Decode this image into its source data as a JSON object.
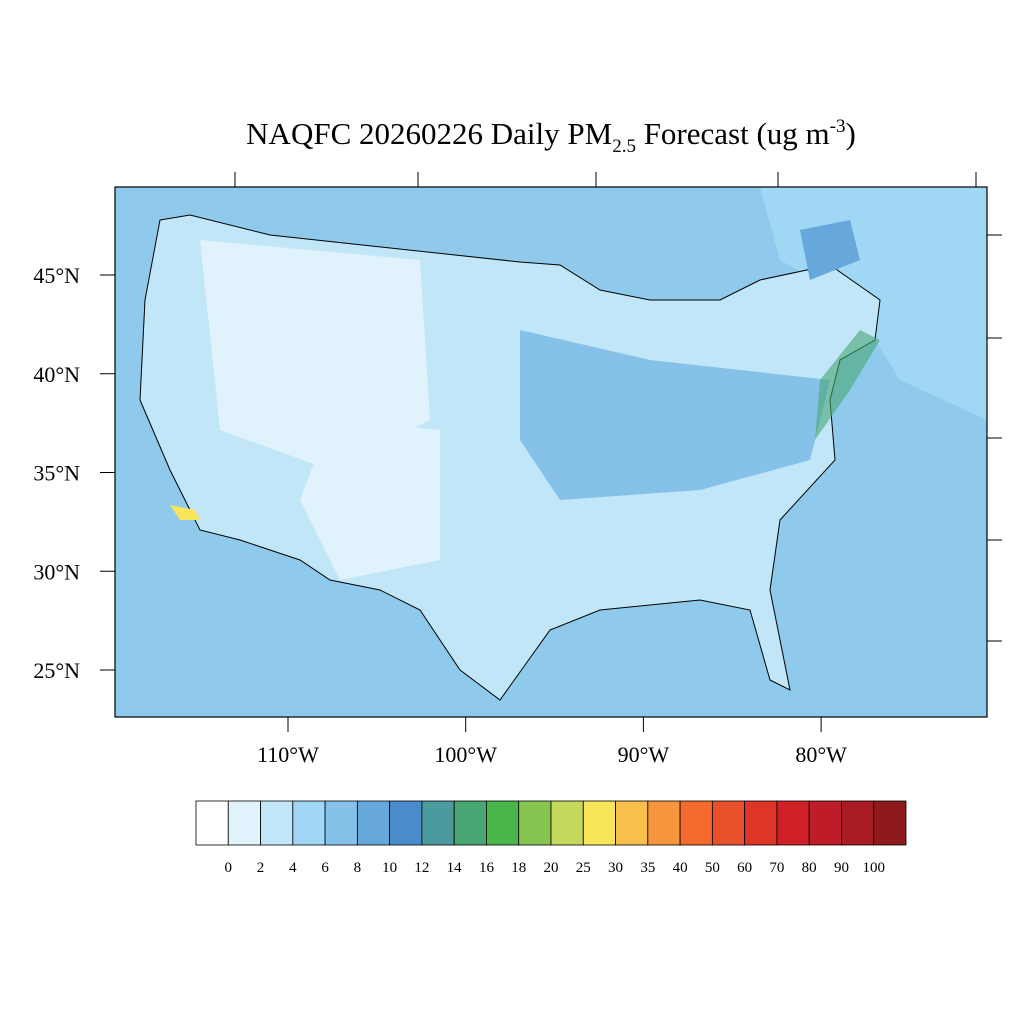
{
  "title": {
    "main": "NAQFC 20260226 Daily PM",
    "subscript": "2.5",
    "middle": " Forecast (ug m",
    "superscript": "-3",
    "end": ")"
  },
  "lat_labels": [
    {
      "value": 45,
      "label": "45°N"
    },
    {
      "value": 40,
      "label": "40°N"
    },
    {
      "value": 35,
      "label": "35°N"
    },
    {
      "value": 30,
      "label": "30°N"
    },
    {
      "value": 25,
      "label": "25°N"
    }
  ],
  "lon_labels": [
    {
      "value": -110,
      "label": "110°W"
    },
    {
      "value": -100,
      "label": "100°W"
    },
    {
      "value": -90,
      "label": "90°W"
    },
    {
      "value": -80,
      "label": "80°W"
    }
  ],
  "colorbar": {
    "levels": [
      0,
      2,
      4,
      6,
      8,
      10,
      12,
      14,
      16,
      18,
      20,
      25,
      30,
      35,
      40,
      50,
      60,
      70,
      80,
      90,
      100
    ],
    "colors": [
      "#ffffff",
      "#e0f2fb",
      "#c0e6f7",
      "#9fd7f4",
      "#85c1e8",
      "#66a8dc",
      "#4a8ccb",
      "#4a9a9e",
      "#48a673",
      "#4ab54b",
      "#86c550",
      "#c4d85c",
      "#f9e65a",
      "#f8bf4a",
      "#f7963c",
      "#f26a2c",
      "#e8502b",
      "#dd3526",
      "#d02027",
      "#be1c26",
      "#a81b22",
      "#8f1a1b"
    ]
  }
}
